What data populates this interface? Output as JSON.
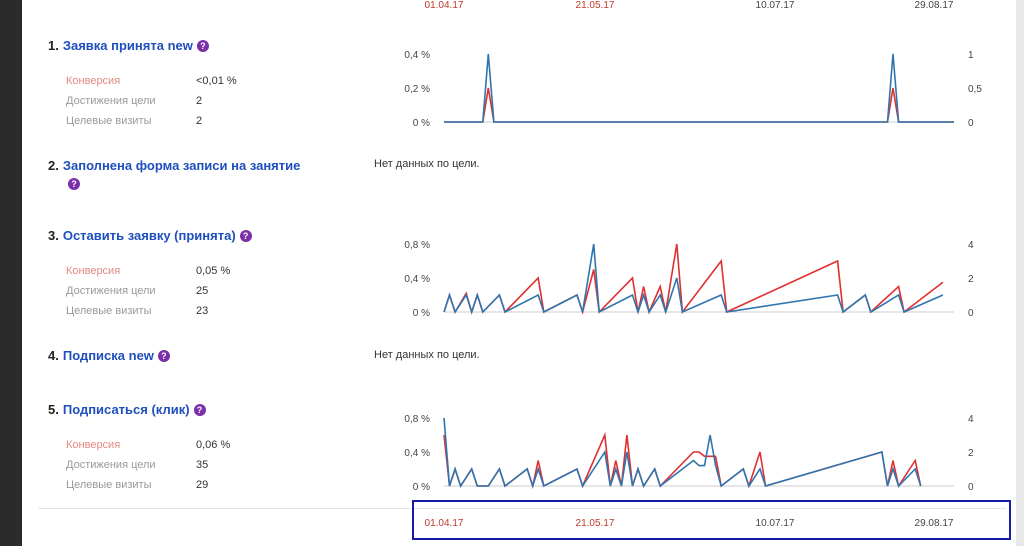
{
  "axis": {
    "ticks": [
      {
        "label": "01.04.17",
        "color": "red"
      },
      {
        "label": "21.05.17",
        "color": "red"
      },
      {
        "label": "10.07.17",
        "color": "gray"
      },
      {
        "label": "29.08.17",
        "color": "gray"
      }
    ]
  },
  "no_data_text": "Нет данных по цели.",
  "metric_labels": {
    "conversion": "Конверсия",
    "achievements": "Достижения цели",
    "visits": "Целевые визиты"
  },
  "colors": {
    "conversion_series": "#e03030",
    "visits_series": "#2f76b0"
  },
  "goals": [
    {
      "number": "1.",
      "title": "Заявка принята new",
      "conversion": "<0,01 %",
      "achievements": "2",
      "visits": "2",
      "left_axis": [
        "0,4 %",
        "0,2 %",
        "0 %"
      ],
      "right_axis": [
        "1",
        "0,5",
        "0"
      ]
    },
    {
      "number": "2.",
      "title": "Заполнена форма записи на занятие"
    },
    {
      "number": "3.",
      "title": "Оставить заявку (принята)",
      "conversion": "0,05 %",
      "achievements": "25",
      "visits": "23",
      "left_axis": [
        "0,8 %",
        "0,4 %",
        "0 %"
      ],
      "right_axis": [
        "4",
        "2",
        "0"
      ]
    },
    {
      "number": "4.",
      "title": "Подписка new"
    },
    {
      "number": "5.",
      "title": "Подписаться (клик)",
      "conversion": "0,06 %",
      "achievements": "35",
      "visits": "29",
      "left_axis": [
        "0,8 %",
        "0,4 %",
        "0 %"
      ],
      "right_axis": [
        "4",
        "2",
        "0"
      ]
    }
  ],
  "chart_data": [
    {
      "type": "line",
      "title": "Заявка принята new",
      "x_start": "01.04.17",
      "x_ticks": [
        "01.04.17",
        "21.05.17",
        "10.07.17",
        "29.08.17"
      ],
      "ylim_left": [
        0,
        0.4
      ],
      "ylim_right": [
        0,
        1
      ],
      "series": [
        {
          "axis": "left",
          "color": "#e03030",
          "points": [
            [
              0,
              0
            ],
            [
              7,
              0
            ],
            [
              8,
              0.2
            ],
            [
              9,
              0
            ],
            [
              80,
              0
            ],
            [
              81,
              0.2
            ],
            [
              82,
              0
            ],
            [
              92,
              0
            ]
          ]
        },
        {
          "axis": "right",
          "color": "#2f76b0",
          "points": [
            [
              0,
              0
            ],
            [
              7,
              0
            ],
            [
              8,
              1
            ],
            [
              9,
              0
            ],
            [
              80,
              0
            ],
            [
              81,
              1
            ],
            [
              82,
              0
            ],
            [
              92,
              0
            ]
          ]
        }
      ]
    },
    {
      "type": "line",
      "title": "Оставить заявку (принята)",
      "x_start": "01.04.17",
      "x_ticks": [
        "01.04.17",
        "21.05.17",
        "10.07.17",
        "29.08.17"
      ],
      "ylim_left": [
        0,
        0.8
      ],
      "ylim_right": [
        0,
        4
      ],
      "series": [
        {
          "axis": "left",
          "color": "#e03030",
          "points": [
            [
              0,
              0
            ],
            [
              1,
              0.2
            ],
            [
              2,
              0
            ],
            [
              4,
              0.22
            ],
            [
              5,
              0
            ],
            [
              6,
              0.2
            ],
            [
              7,
              0
            ],
            [
              10,
              0.2
            ],
            [
              11,
              0
            ],
            [
              17,
              0.4
            ],
            [
              18,
              0
            ],
            [
              24,
              0.2
            ],
            [
              25,
              0
            ],
            [
              27,
              0.5
            ],
            [
              28,
              0
            ],
            [
              34,
              0.4
            ],
            [
              35,
              0
            ],
            [
              36,
              0.3
            ],
            [
              37,
              0
            ],
            [
              39,
              0.3
            ],
            [
              40,
              0
            ],
            [
              42,
              0.8
            ],
            [
              43,
              0
            ],
            [
              50,
              0.6
            ],
            [
              51,
              0
            ],
            [
              71,
              0.6
            ],
            [
              72,
              0
            ],
            [
              76,
              0.2
            ],
            [
              77,
              0
            ],
            [
              82,
              0.3
            ],
            [
              83,
              0
            ],
            [
              90,
              0.35
            ]
          ]
        },
        {
          "axis": "right",
          "color": "#2f76b0",
          "points": [
            [
              0,
              0
            ],
            [
              1,
              1
            ],
            [
              2,
              0
            ],
            [
              4,
              1
            ],
            [
              5,
              0
            ],
            [
              6,
              1
            ],
            [
              7,
              0
            ],
            [
              10,
              1
            ],
            [
              11,
              0
            ],
            [
              17,
              1
            ],
            [
              18,
              0
            ],
            [
              24,
              1
            ],
            [
              25,
              0
            ],
            [
              27,
              4
            ],
            [
              28,
              0
            ],
            [
              34,
              1
            ],
            [
              35,
              0
            ],
            [
              36,
              1
            ],
            [
              37,
              0
            ],
            [
              39,
              1
            ],
            [
              40,
              0
            ],
            [
              42,
              2
            ],
            [
              43,
              0
            ],
            [
              50,
              1
            ],
            [
              51,
              0
            ],
            [
              71,
              1
            ],
            [
              72,
              0
            ],
            [
              76,
              1
            ],
            [
              77,
              0
            ],
            [
              82,
              1
            ],
            [
              83,
              0
            ],
            [
              90,
              1
            ]
          ]
        }
      ]
    },
    {
      "type": "line",
      "title": "Подписаться (клик)",
      "x_start": "01.04.17",
      "x_ticks": [
        "01.04.17",
        "21.05.17",
        "10.07.17",
        "29.08.17"
      ],
      "ylim_left": [
        0,
        0.8
      ],
      "ylim_right": [
        0,
        4
      ],
      "series": [
        {
          "axis": "left",
          "color": "#e03030",
          "points": [
            [
              0,
              0.6
            ],
            [
              1,
              0
            ],
            [
              2,
              0.2
            ],
            [
              3,
              0
            ],
            [
              5,
              0.2
            ],
            [
              6,
              0
            ],
            [
              8,
              0
            ],
            [
              10,
              0.2
            ],
            [
              11,
              0
            ],
            [
              15,
              0.2
            ],
            [
              16,
              0
            ],
            [
              17,
              0.3
            ],
            [
              18,
              0
            ],
            [
              24,
              0.2
            ],
            [
              25,
              0
            ],
            [
              29,
              0.6
            ],
            [
              30,
              0
            ],
            [
              31,
              0.3
            ],
            [
              32,
              0
            ],
            [
              33,
              0.6
            ],
            [
              34,
              0
            ],
            [
              35,
              0.2
            ],
            [
              36,
              0
            ],
            [
              38,
              0.2
            ],
            [
              39,
              0
            ],
            [
              45,
              0.4
            ],
            [
              46,
              0.4
            ],
            [
              47,
              0.35
            ],
            [
              48,
              0.35
            ],
            [
              49,
              0.35
            ],
            [
              50,
              0
            ],
            [
              54,
              0.2
            ],
            [
              55,
              0
            ],
            [
              57,
              0.4
            ],
            [
              58,
              0
            ],
            [
              79,
              0.4
            ],
            [
              80,
              0
            ],
            [
              81,
              0.3
            ],
            [
              82,
              0
            ],
            [
              85,
              0.3
            ],
            [
              86,
              0
            ]
          ]
        },
        {
          "axis": "right",
          "color": "#2f76b0",
          "points": [
            [
              0,
              4
            ],
            [
              1,
              0
            ],
            [
              2,
              1
            ],
            [
              3,
              0
            ],
            [
              5,
              1
            ],
            [
              6,
              0
            ],
            [
              8,
              0
            ],
            [
              10,
              1
            ],
            [
              11,
              0
            ],
            [
              15,
              1
            ],
            [
              16,
              0
            ],
            [
              17,
              1
            ],
            [
              18,
              0
            ],
            [
              24,
              1
            ],
            [
              25,
              0
            ],
            [
              29,
              2
            ],
            [
              30,
              0
            ],
            [
              31,
              1
            ],
            [
              32,
              0
            ],
            [
              33,
              2
            ],
            [
              34,
              0
            ],
            [
              35,
              1
            ],
            [
              36,
              0
            ],
            [
              38,
              1
            ],
            [
              39,
              0
            ],
            [
              45,
              1.5
            ],
            [
              46,
              1.2
            ],
            [
              47,
              1.2
            ],
            [
              48,
              3
            ],
            [
              49,
              1.2
            ],
            [
              50,
              0
            ],
            [
              54,
              1
            ],
            [
              55,
              0
            ],
            [
              57,
              1
            ],
            [
              58,
              0
            ],
            [
              79,
              2
            ],
            [
              80,
              0
            ],
            [
              81,
              1
            ],
            [
              82,
              0
            ],
            [
              85,
              1
            ],
            [
              86,
              0
            ]
          ]
        }
      ]
    }
  ]
}
